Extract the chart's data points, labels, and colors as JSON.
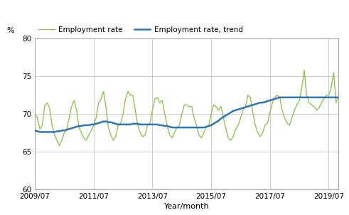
{
  "title": "",
  "ylabel": "%",
  "xlabel": "Year/month",
  "ylim": [
    60,
    80
  ],
  "yticks": [
    60,
    65,
    70,
    75,
    80
  ],
  "xtick_labels": [
    "2009/07",
    "2011/07",
    "2013/07",
    "2015/07",
    "2017/07",
    "2019/07"
  ],
  "employment_rate_color": "#92c353",
  "trend_color": "#2e75b6",
  "legend_label_rate": "Employment rate",
  "legend_label_trend": "Employment rate, trend",
  "employment_rate": [
    70.0,
    69.5,
    68.0,
    68.5,
    71.1,
    71.5,
    70.8,
    68.5,
    67.2,
    66.5,
    65.8,
    66.5,
    67.5,
    68.0,
    69.5,
    71.0,
    71.8,
    70.5,
    68.2,
    67.5,
    66.8,
    66.5,
    67.2,
    67.8,
    68.5,
    69.5,
    71.5,
    72.0,
    73.0,
    71.0,
    68.2,
    67.2,
    66.5,
    67.0,
    68.5,
    68.8,
    70.0,
    72.0,
    73.0,
    72.5,
    72.5,
    70.5,
    68.5,
    67.5,
    67.0,
    67.2,
    68.5,
    68.8,
    70.5,
    72.0,
    72.2,
    71.5,
    71.8,
    70.0,
    68.5,
    67.2,
    66.8,
    67.5,
    68.2,
    68.5,
    70.0,
    71.2,
    71.2,
    71.0,
    71.0,
    69.5,
    68.5,
    67.2,
    66.8,
    67.5,
    68.2,
    68.5,
    70.0,
    71.2,
    71.0,
    70.5,
    71.0,
    69.5,
    68.0,
    66.8,
    66.5,
    67.0,
    68.0,
    68.5,
    69.5,
    70.5,
    71.0,
    72.5,
    72.2,
    70.2,
    68.5,
    67.5,
    67.0,
    67.5,
    68.5,
    68.8,
    70.2,
    71.5,
    72.2,
    72.5,
    72.2,
    70.5,
    69.5,
    68.8,
    68.5,
    69.5,
    70.5,
    71.2,
    71.8,
    73.5,
    75.8,
    72.5,
    71.5,
    71.2,
    71.0,
    70.5,
    70.8,
    71.5,
    72.0,
    72.5,
    72.5,
    73.5,
    75.5,
    71.5,
    72.5
  ],
  "trend": [
    67.8,
    67.7,
    67.6,
    67.6,
    67.6,
    67.6,
    67.6,
    67.6,
    67.6,
    67.7,
    67.7,
    67.8,
    67.8,
    67.9,
    68.0,
    68.1,
    68.2,
    68.3,
    68.4,
    68.4,
    68.5,
    68.5,
    68.5,
    68.6,
    68.6,
    68.7,
    68.8,
    68.9,
    69.0,
    69.0,
    68.9,
    68.9,
    68.8,
    68.7,
    68.6,
    68.6,
    68.6,
    68.6,
    68.6,
    68.6,
    68.7,
    68.7,
    68.7,
    68.6,
    68.6,
    68.6,
    68.6,
    68.6,
    68.6,
    68.6,
    68.6,
    68.5,
    68.5,
    68.4,
    68.4,
    68.3,
    68.2,
    68.2,
    68.2,
    68.2,
    68.2,
    68.2,
    68.2,
    68.2,
    68.2,
    68.2,
    68.2,
    68.2,
    68.2,
    68.2,
    68.3,
    68.4,
    68.5,
    68.7,
    68.9,
    69.1,
    69.4,
    69.6,
    69.8,
    70.0,
    70.2,
    70.4,
    70.5,
    70.6,
    70.7,
    70.8,
    70.9,
    71.0,
    71.1,
    71.2,
    71.3,
    71.4,
    71.5,
    71.5,
    71.6,
    71.7,
    71.8,
    71.9,
    72.0,
    72.1,
    72.2,
    72.2,
    72.2,
    72.2,
    72.2,
    72.2,
    72.2,
    72.2,
    72.2,
    72.2,
    72.2,
    72.2,
    72.2,
    72.2,
    72.2,
    72.2,
    72.2,
    72.2,
    72.2,
    72.2,
    72.2,
    72.2,
    72.2,
    72.2,
    72.2
  ],
  "background_color": "#ffffff",
  "grid_color": "#c8c8c8"
}
